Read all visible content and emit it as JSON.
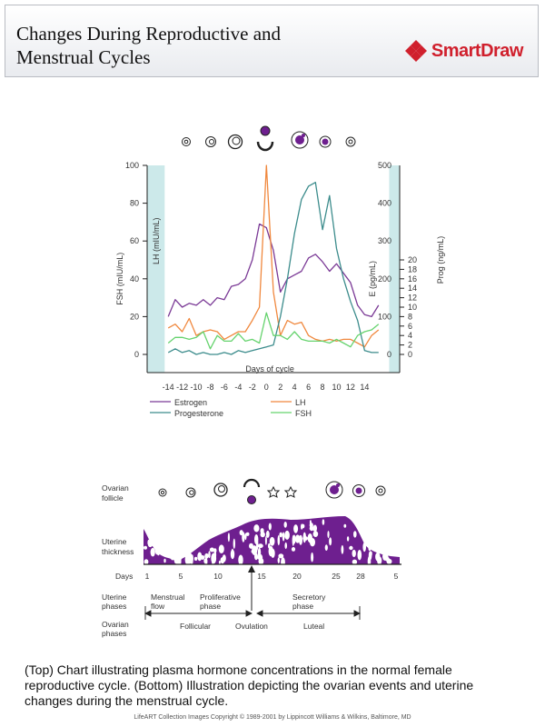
{
  "header": {
    "title": "Changes During Reproductive and\nMenstrual Cycles",
    "brand": "SmartDraw"
  },
  "colors": {
    "estrogen": "#7b3a96",
    "lh": "#f0883e",
    "progesterone": "#3c8c8c",
    "fsh": "#66d36e",
    "shade": "#cce9ea",
    "uterus": "#6e1f8f"
  },
  "chart_data": {
    "type": "line",
    "x": [
      -14,
      -13,
      -12,
      -11,
      -10,
      -9,
      -8,
      -7,
      -6,
      -5,
      -4,
      -3,
      -2,
      -1,
      0,
      1,
      2,
      3,
      4,
      5,
      6,
      7,
      8,
      9,
      10,
      11,
      12,
      13,
      14,
      15,
      16
    ],
    "xlim": [
      -17,
      19
    ],
    "x_ticks": [
      -14,
      -12,
      -10,
      -8,
      -6,
      -4,
      -2,
      0,
      2,
      4,
      6,
      8,
      10,
      12,
      14
    ],
    "x_tick_labels": [
      "-14",
      "-12",
      "-10",
      "-8",
      "-6",
      "-4",
      "-2",
      "0",
      "2",
      "4",
      "6",
      "8",
      "10",
      "12",
      "14"
    ],
    "xlabel": "Days of cycle",
    "left_axis": {
      "label": "FSH (mIU/mL)",
      "ticks": [
        "0",
        "20",
        "40",
        "60",
        "80",
        "100"
      ],
      "ylim": [
        0,
        100
      ]
    },
    "inner_label": "LH (mIU/mL)",
    "right_axis_e": {
      "label": "E (pg/mL)",
      "ticks": [
        "0",
        "100",
        "200",
        "300",
        "400",
        "500"
      ],
      "ylim": [
        0,
        500
      ]
    },
    "right_axis_p": {
      "label": "Prog (ng/mL)",
      "ticks": [
        "0",
        "2",
        "4",
        "6",
        "8",
        "10",
        "12",
        "14",
        "16",
        "18",
        "20"
      ],
      "ylim": [
        0,
        20
      ]
    },
    "series": [
      {
        "name": "Estrogen",
        "axis": "FSH (mIU/mL)",
        "values": [
          20,
          29,
          25,
          27,
          26,
          29,
          26,
          30,
          29,
          36,
          37,
          40,
          50,
          69,
          67,
          55,
          33,
          40,
          42,
          44,
          51,
          53,
          49,
          44,
          48,
          43,
          38,
          26,
          21,
          20,
          26
        ]
      },
      {
        "name": "LH",
        "axis": "FSH (mIU/mL)",
        "values": [
          14,
          16,
          12,
          19,
          10,
          12,
          13,
          12,
          8,
          10,
          12,
          12,
          18,
          25,
          100,
          33,
          10,
          18,
          16,
          17,
          10,
          8,
          7,
          8,
          7,
          8,
          8,
          6,
          4,
          10,
          13
        ]
      },
      {
        "name": "Progesterone",
        "axis": "FSH (mIU/mL)",
        "values": [
          1,
          3,
          1,
          2,
          0,
          1,
          0,
          0,
          1,
          0,
          2,
          1,
          2,
          3,
          4,
          5,
          20,
          40,
          64,
          82,
          89,
          91,
          66,
          84,
          56,
          40,
          28,
          18,
          2,
          1,
          1
        ]
      },
      {
        "name": "FSH",
        "axis": "FSH (mIU/mL)",
        "values": [
          6,
          9,
          9,
          8,
          9,
          12,
          3,
          10,
          7,
          7,
          11,
          7,
          8,
          6,
          22,
          10,
          10,
          8,
          12,
          8,
          7,
          7,
          7,
          6,
          8,
          6,
          4,
          10,
          12,
          13,
          16
        ]
      }
    ],
    "legend": [
      "Estrogen",
      "LH",
      "Progesterone",
      "FSH"
    ]
  },
  "bottom": {
    "row_labels": {
      "ovarian_follicle": [
        "Ovarian",
        "follicle"
      ],
      "uterine_thickness": [
        "Uterine",
        "thickness"
      ],
      "days": "Days",
      "uterine_phases": [
        "Uterine",
        "phases"
      ],
      "ovarian_phases": [
        "Ovarian",
        "phases"
      ]
    },
    "day_ticks": [
      "1",
      "5",
      "10",
      "15",
      "20",
      "25",
      "28",
      "5"
    ],
    "uterine_phase_labels": [
      "Menstrual",
      "flow",
      "Proliferative",
      "phase",
      "Secretory",
      "phase"
    ],
    "ovarian_phase_labels": [
      "Follicular",
      "Ovulation",
      "Luteal"
    ]
  },
  "caption": "(Top) Chart illustrating plasma hormone concentrations in the normal female reproductive cycle.  (Bottom) Illustration depicting the ovarian events and uterine changes during the menstrual cycle.",
  "copyright": "LifeART Collection Images Copyright © 1989-2001 by Lippincott Williams & Wilkins, Baltimore, MD"
}
